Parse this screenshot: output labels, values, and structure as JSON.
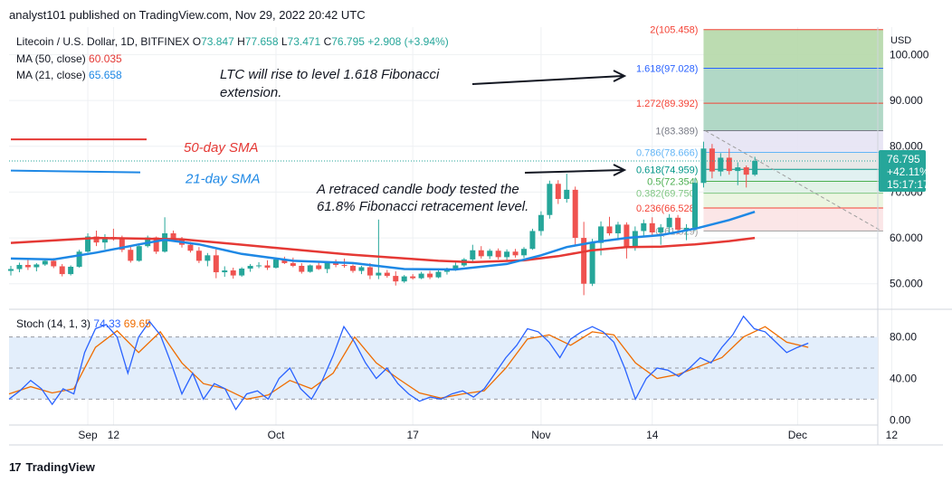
{
  "publish_line": "analyst101 published on TradingView.com, Nov 29, 2022 20:42 UTC",
  "footer_brand": "TradingView",
  "footer_logo": "17",
  "colors": {
    "up": "#26a69a",
    "down": "#ef5350",
    "ma50": "#e53935",
    "ma21": "#1e88e5",
    "stoch_k": "#2962ff",
    "stoch_d": "#ef6c00",
    "stoch_band": "#e3eefb",
    "price_tag": "#26a69a",
    "grid": "#eef0f3",
    "axis_text": "#131722"
  },
  "chart_data": {
    "type": "candlestick",
    "symbol_line": {
      "name": "Litecoin / U.S. Dollar, 1D, BITFINEX",
      "o_label": "O",
      "o": "73.847",
      "h_label": "H",
      "h": "77.658",
      "l_label": "L",
      "l": "73.471",
      "c_label": "C",
      "c": "76.795",
      "change": "+2.908 (+3.94%)"
    },
    "ma_legend": [
      {
        "label": "MA (50, close)",
        "value": "60.035",
        "color": "#e53935"
      },
      {
        "label": "MA (21, close)",
        "value": "65.658",
        "color": "#1e88e5"
      }
    ],
    "currency": "USD",
    "price_axis": {
      "ticks": [
        "100.000",
        "90.000",
        "80.000",
        "70.000",
        "60.000",
        "50.000"
      ],
      "values": [
        100,
        90,
        80,
        70,
        60,
        50
      ],
      "range": [
        46,
        106
      ]
    },
    "current_price": {
      "price": "76.795",
      "change": "+42.11%",
      "countdown": "15:17:17",
      "value": 76.795
    },
    "x_labels": [
      {
        "label": "Sep",
        "day": 9
      },
      {
        "label": "12",
        "day": 12
      },
      {
        "label": "Oct",
        "day": 31
      },
      {
        "label": "17",
        "day": 47
      },
      {
        "label": "Nov",
        "day": 62
      },
      {
        "label": "14",
        "day": 75
      },
      {
        "label": "Dec",
        "day": 92
      },
      {
        "label": "12",
        "day": 103
      }
    ],
    "candles_start": "Aug 31, 2022",
    "candles": [
      [
        52.8,
        53.9,
        51.8,
        53.2
      ],
      [
        53.2,
        54.6,
        52.5,
        54.1
      ],
      [
        54.1,
        55.2,
        53.0,
        53.6
      ],
      [
        53.6,
        54.5,
        52.7,
        54.2
      ],
      [
        54.2,
        55.4,
        53.9,
        55.0
      ],
      [
        55.0,
        55.6,
        53.4,
        53.8
      ],
      [
        53.8,
        54.3,
        51.6,
        52.1
      ],
      [
        52.1,
        54.0,
        51.8,
        53.7
      ],
      [
        53.7,
        57.4,
        53.5,
        57.0
      ],
      [
        57.0,
        61.0,
        56.8,
        60.3
      ],
      [
        60.3,
        61.6,
        58.2,
        59.0
      ],
      [
        59.0,
        60.8,
        57.5,
        60.2
      ],
      [
        60.2,
        62.0,
        59.4,
        59.8
      ],
      [
        59.8,
        60.5,
        56.9,
        57.4
      ],
      [
        57.4,
        58.3,
        54.6,
        55.0
      ],
      [
        55.0,
        58.6,
        54.8,
        58.2
      ],
      [
        58.2,
        60.5,
        57.9,
        60.1
      ],
      [
        60.1,
        60.3,
        56.5,
        57.0
      ],
      [
        57.0,
        64.5,
        56.8,
        61.0
      ],
      [
        61.0,
        61.6,
        59.2,
        59.6
      ],
      [
        59.6,
        60.2,
        57.9,
        58.5
      ],
      [
        58.5,
        59.1,
        56.8,
        57.2
      ],
      [
        57.2,
        58.0,
        54.5,
        55.0
      ],
      [
        55.0,
        56.7,
        53.8,
        56.2
      ],
      [
        56.2,
        57.5,
        51.2,
        52.5
      ],
      [
        52.5,
        53.8,
        51.5,
        52.9
      ],
      [
        52.9,
        53.5,
        51.1,
        51.8
      ],
      [
        51.8,
        53.6,
        51.5,
        53.3
      ],
      [
        53.3,
        54.3,
        52.6,
        53.9
      ],
      [
        53.9,
        54.7,
        53.4,
        54.0
      ],
      [
        54.0,
        55.1,
        53.0,
        53.5
      ],
      [
        53.5,
        55.7,
        53.3,
        55.3
      ],
      [
        55.3,
        55.9,
        54.3,
        54.5
      ],
      [
        54.5,
        55.7,
        53.6,
        53.9
      ],
      [
        53.9,
        54.5,
        52.2,
        52.6
      ],
      [
        52.6,
        54.2,
        52.4,
        54.0
      ],
      [
        54.0,
        54.8,
        53.0,
        53.2
      ],
      [
        53.2,
        54.9,
        52.3,
        54.6
      ],
      [
        54.6,
        55.3,
        53.6,
        54.1
      ],
      [
        54.1,
        55.5,
        53.5,
        53.9
      ],
      [
        53.9,
        54.2,
        52.4,
        52.8
      ],
      [
        52.8,
        53.9,
        52.1,
        53.6
      ],
      [
        53.6,
        54.5,
        51.0,
        51.8
      ],
      [
        51.8,
        64.0,
        51.0,
        52.4
      ],
      [
        52.4,
        53.0,
        51.3,
        51.7
      ],
      [
        51.7,
        52.7,
        49.6,
        50.5
      ],
      [
        50.5,
        51.9,
        50.2,
        51.6
      ],
      [
        51.6,
        52.1,
        50.9,
        51.2
      ],
      [
        51.2,
        52.6,
        51.0,
        52.2
      ],
      [
        52.2,
        52.8,
        51.0,
        51.4
      ],
      [
        51.4,
        52.9,
        51.2,
        52.6
      ],
      [
        52.6,
        53.5,
        52.0,
        53.1
      ],
      [
        53.1,
        54.6,
        52.8,
        54.0
      ],
      [
        54.0,
        55.6,
        53.7,
        55.3
      ],
      [
        55.3,
        58.5,
        54.8,
        57.3
      ],
      [
        57.3,
        58.2,
        55.5,
        56.0
      ],
      [
        56.0,
        57.6,
        55.4,
        57.2
      ],
      [
        57.2,
        57.7,
        55.3,
        55.8
      ],
      [
        55.8,
        57.5,
        54.9,
        57.0
      ],
      [
        57.0,
        57.6,
        55.7,
        56.2
      ],
      [
        56.2,
        58.0,
        55.6,
        57.6
      ],
      [
        57.6,
        62.0,
        57.4,
        61.5
      ],
      [
        61.5,
        65.8,
        60.5,
        65.0
      ],
      [
        65.0,
        72.5,
        64.2,
        71.8
      ],
      [
        71.8,
        72.6,
        67.4,
        68.5
      ],
      [
        68.5,
        74.0,
        67.7,
        70.5
      ],
      [
        70.5,
        71.2,
        58.5,
        60.0
      ],
      [
        60.0,
        63.5,
        47.5,
        50.0
      ],
      [
        50.0,
        59.8,
        49.5,
        58.9
      ],
      [
        58.9,
        63.6,
        56.2,
        62.5
      ],
      [
        62.5,
        64.6,
        60.5,
        61.0
      ],
      [
        61.0,
        63.5,
        59.5,
        62.9
      ],
      [
        62.9,
        63.4,
        55.5,
        58.0
      ],
      [
        58.0,
        62.5,
        57.2,
        61.5
      ],
      [
        61.5,
        64.0,
        60.2,
        63.2
      ],
      [
        63.2,
        64.5,
        60.5,
        61.2
      ],
      [
        61.2,
        63.0,
        58.5,
        62.3
      ],
      [
        62.3,
        65.2,
        61.2,
        64.4
      ],
      [
        64.4,
        65.0,
        60.8,
        61.8
      ],
      [
        61.8,
        63.0,
        59.5,
        62.2
      ],
      [
        62.2,
        73.0,
        61.5,
        72.0
      ],
      [
        72.0,
        81.0,
        71.0,
        79.5
      ],
      [
        79.5,
        80.5,
        73.0,
        74.5
      ],
      [
        74.5,
        78.5,
        73.5,
        77.5
      ],
      [
        77.5,
        79.5,
        73.8,
        74.6
      ],
      [
        74.6,
        76.5,
        71.5,
        75.4
      ],
      [
        75.4,
        75.8,
        71.0,
        73.8
      ],
      [
        73.8,
        77.7,
        73.5,
        76.8
      ]
    ],
    "ma50": [
      [
        0,
        58.9
      ],
      [
        10,
        60.0
      ],
      [
        20,
        59.7
      ],
      [
        30,
        58.0
      ],
      [
        40,
        56.3
      ],
      [
        50,
        55.0
      ],
      [
        54,
        54.7
      ],
      [
        60,
        55.1
      ],
      [
        64,
        56.0
      ],
      [
        68,
        57.3
      ],
      [
        72,
        58.0
      ],
      [
        76,
        58.1
      ],
      [
        80,
        58.6
      ],
      [
        84,
        59.3
      ],
      [
        87,
        60.0
      ]
    ],
    "ma21": [
      [
        0,
        55.5
      ],
      [
        5,
        55.3
      ],
      [
        10,
        56.8
      ],
      [
        15,
        58.6
      ],
      [
        18,
        59.6
      ],
      [
        22,
        58.6
      ],
      [
        27,
        56.5
      ],
      [
        33,
        55.0
      ],
      [
        40,
        54.5
      ],
      [
        46,
        53.2
      ],
      [
        52,
        53.1
      ],
      [
        58,
        54.3
      ],
      [
        62,
        56.2
      ],
      [
        65,
        58.0
      ],
      [
        68,
        59.0
      ],
      [
        72,
        60.0
      ],
      [
        76,
        60.6
      ],
      [
        80,
        62.0
      ],
      [
        84,
        63.9
      ],
      [
        87,
        65.7
      ]
    ],
    "ma50_segment_label": {
      "text": "50-day SMA",
      "value": 81.5
    },
    "ma21_segment_label": {
      "text": "21-day SMA",
      "value": 74.7
    },
    "fibonacci": {
      "start_day": 81,
      "end_day": 102,
      "levels": [
        {
          "ratio": "0",
          "price": "61.529",
          "value": 61.529,
          "fill": "#fbe3e4"
        },
        {
          "ratio": "0.236",
          "price": "66.528",
          "value": 66.528,
          "fill": "#fbe3e4"
        },
        {
          "ratio": "0.382",
          "price": "69.750",
          "value": 69.75,
          "fill": "#eaf4de"
        },
        {
          "ratio": "0.5",
          "price": "72.354",
          "value": 72.354,
          "fill": "#dff1e6"
        },
        {
          "ratio": "0.618",
          "price": "74.959",
          "value": 74.959,
          "fill": "#def0f0"
        },
        {
          "ratio": "0.786",
          "price": "78.666",
          "value": 78.666,
          "fill": "#e6e6e6"
        },
        {
          "ratio": "1",
          "price": "83.389",
          "value": 83.389,
          "fill": "#e5e3f4"
        },
        {
          "ratio": "1.272",
          "price": "89.392",
          "value": 89.392,
          "fill": "#a9d4c0"
        },
        {
          "ratio": "1.618",
          "price": "97.028",
          "value": 97.028,
          "fill": "#a9d4c0"
        },
        {
          "ratio": "2",
          "price": "105.458",
          "value": 105.458,
          "fill": "#b5d8a8"
        }
      ]
    },
    "annotations": [
      {
        "text": "LTC will rise to level 1.618 Fibonacci",
        "line": 1
      },
      {
        "text": "extension.",
        "line": 2
      },
      {
        "text": "A retraced candle body tested the",
        "line": 3
      },
      {
        "text": "61.8% Fibonacci retracement level.",
        "line": 4
      }
    ],
    "stoch": {
      "label": "Stoch (14, 1, 3)",
      "k_value": "74.33",
      "d_value": "69.65",
      "ticks": [
        "80.00",
        "40.00",
        "0.00"
      ],
      "tick_values": [
        80,
        40,
        0
      ],
      "range": [
        -5,
        105
      ],
      "band": [
        20,
        80
      ],
      "k": [
        [
          0,
          20
        ],
        [
          2,
          28
        ],
        [
          4,
          38
        ],
        [
          6,
          30
        ],
        [
          8,
          15
        ],
        [
          10,
          30
        ],
        [
          12,
          25
        ],
        [
          14,
          65
        ],
        [
          16,
          88
        ],
        [
          18,
          92
        ],
        [
          20,
          80
        ],
        [
          22,
          45
        ],
        [
          24,
          80
        ],
        [
          26,
          95
        ],
        [
          28,
          82
        ],
        [
          30,
          55
        ],
        [
          32,
          25
        ],
        [
          34,
          45
        ],
        [
          36,
          20
        ],
        [
          38,
          35
        ],
        [
          40,
          30
        ],
        [
          42,
          10
        ],
        [
          44,
          25
        ],
        [
          46,
          28
        ],
        [
          48,
          20
        ],
        [
          50,
          40
        ],
        [
          52,
          50
        ],
        [
          54,
          30
        ],
        [
          56,
          20
        ],
        [
          58,
          38
        ],
        [
          60,
          62
        ],
        [
          62,
          90
        ],
        [
          64,
          75
        ],
        [
          66,
          55
        ],
        [
          68,
          40
        ],
        [
          70,
          50
        ],
        [
          72,
          35
        ],
        [
          74,
          25
        ],
        [
          76,
          18
        ],
        [
          78,
          22
        ],
        [
          80,
          20
        ],
        [
          82,
          25
        ],
        [
          84,
          28
        ],
        [
          86,
          22
        ],
        [
          88,
          30
        ],
        [
          90,
          45
        ],
        [
          92,
          60
        ],
        [
          94,
          72
        ],
        [
          96,
          88
        ],
        [
          98,
          85
        ],
        [
          100,
          75
        ],
        [
          102,
          60
        ],
        [
          104,
          78
        ],
        [
          106,
          85
        ],
        [
          108,
          90
        ],
        [
          110,
          85
        ],
        [
          112,
          75
        ],
        [
          114,
          50
        ],
        [
          116,
          20
        ],
        [
          118,
          40
        ],
        [
          120,
          50
        ],
        [
          122,
          48
        ],
        [
          124,
          42
        ],
        [
          126,
          50
        ],
        [
          128,
          60
        ],
        [
          130,
          55
        ],
        [
          132,
          70
        ],
        [
          134,
          82
        ],
        [
          136,
          100
        ],
        [
          138,
          88
        ],
        [
          140,
          85
        ],
        [
          142,
          75
        ],
        [
          144,
          65
        ],
        [
          146,
          70
        ],
        [
          148,
          74
        ]
      ],
      "d": [
        [
          0,
          25
        ],
        [
          4,
          32
        ],
        [
          8,
          26
        ],
        [
          12,
          30
        ],
        [
          16,
          70
        ],
        [
          20,
          86
        ],
        [
          24,
          65
        ],
        [
          28,
          85
        ],
        [
          32,
          55
        ],
        [
          36,
          35
        ],
        [
          40,
          30
        ],
        [
          44,
          20
        ],
        [
          48,
          24
        ],
        [
          52,
          38
        ],
        [
          56,
          30
        ],
        [
          60,
          45
        ],
        [
          64,
          80
        ],
        [
          68,
          55
        ],
        [
          72,
          40
        ],
        [
          76,
          26
        ],
        [
          80,
          21
        ],
        [
          84,
          25
        ],
        [
          88,
          28
        ],
        [
          92,
          50
        ],
        [
          96,
          78
        ],
        [
          100,
          82
        ],
        [
          104,
          72
        ],
        [
          108,
          85
        ],
        [
          112,
          82
        ],
        [
          116,
          55
        ],
        [
          120,
          40
        ],
        [
          124,
          44
        ],
        [
          128,
          52
        ],
        [
          132,
          60
        ],
        [
          136,
          80
        ],
        [
          140,
          90
        ],
        [
          144,
          75
        ],
        [
          148,
          70
        ]
      ]
    }
  }
}
